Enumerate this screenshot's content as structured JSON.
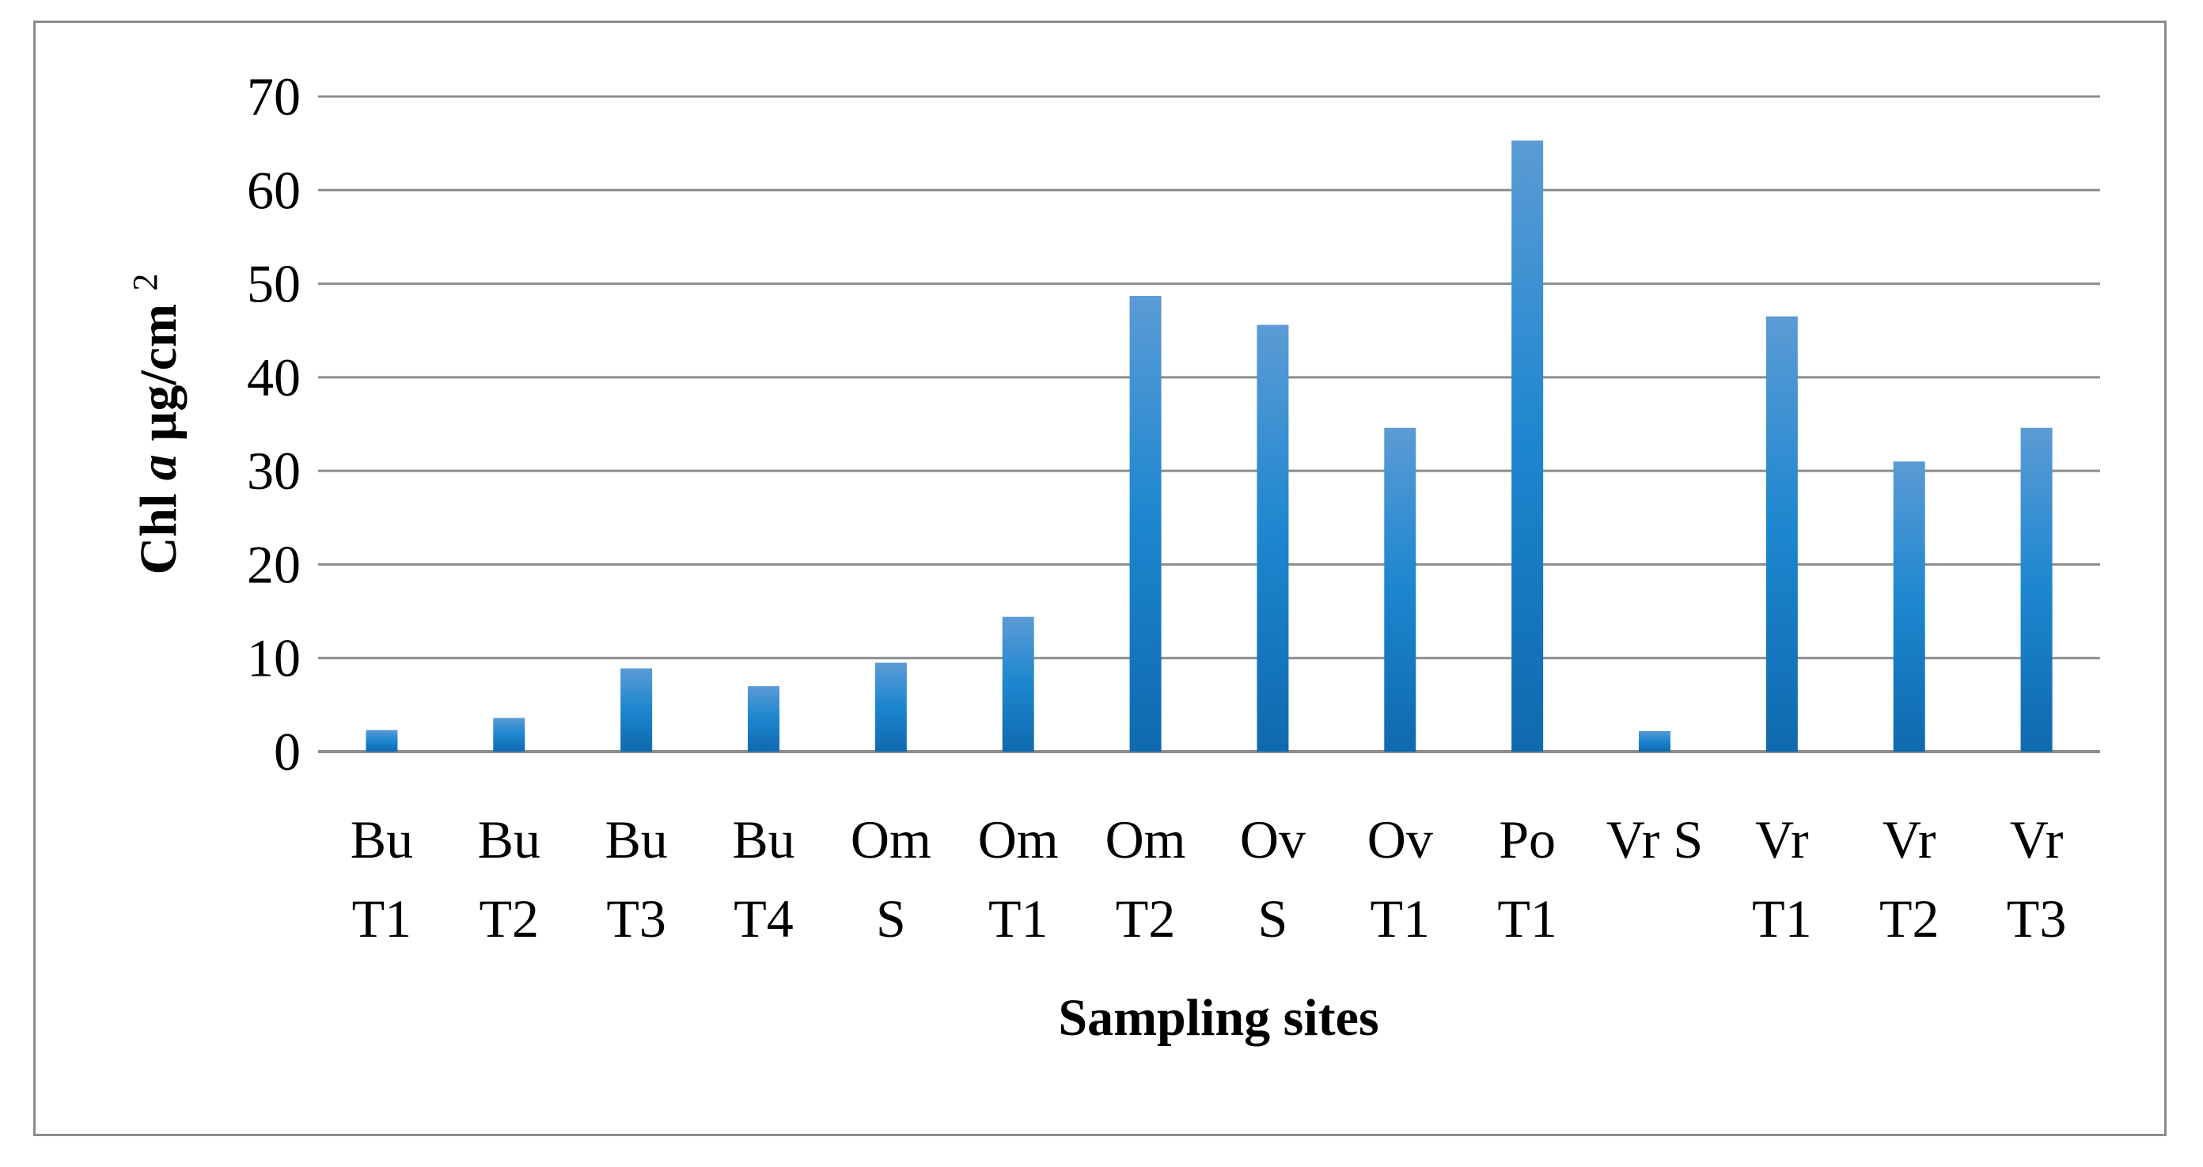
{
  "chart_data": {
    "type": "bar",
    "title": "",
    "xlabel": "Sampling sites",
    "ylabel": {
      "prefix": "Chl ",
      "italic": "a",
      "unit": " µg/cm",
      "superscript": "2"
    },
    "categories": [
      [
        "Bu",
        "T1"
      ],
      [
        "Bu",
        "T2"
      ],
      [
        "Bu",
        "T3"
      ],
      [
        "Bu",
        "T4"
      ],
      [
        "Om",
        "S"
      ],
      [
        "Om",
        "T1"
      ],
      [
        "Om",
        "T2"
      ],
      [
        "Ov",
        "S"
      ],
      [
        "Ov",
        "T1"
      ],
      [
        "Po",
        "T1"
      ],
      [
        "Vr S"
      ],
      [
        "Vr",
        "T1"
      ],
      [
        "Vr",
        "T2"
      ],
      [
        "Vr",
        "T3"
      ]
    ],
    "values": [
      2.3,
      3.6,
      8.9,
      7.0,
      9.5,
      14.4,
      48.7,
      45.6,
      34.6,
      65.3,
      2.2,
      46.5,
      31.0,
      34.6
    ],
    "ylim": [
      0,
      70
    ],
    "yticks": [
      0,
      10,
      20,
      30,
      40,
      50,
      60,
      70
    ],
    "grid": true,
    "legend": "none",
    "colors": {
      "bar_light": "#5b9bd5",
      "bar_mid": "#1c86cf",
      "bar_dark": "#1069ae",
      "grid": "#8c8c8c",
      "frame": "#8c8c8c"
    }
  }
}
